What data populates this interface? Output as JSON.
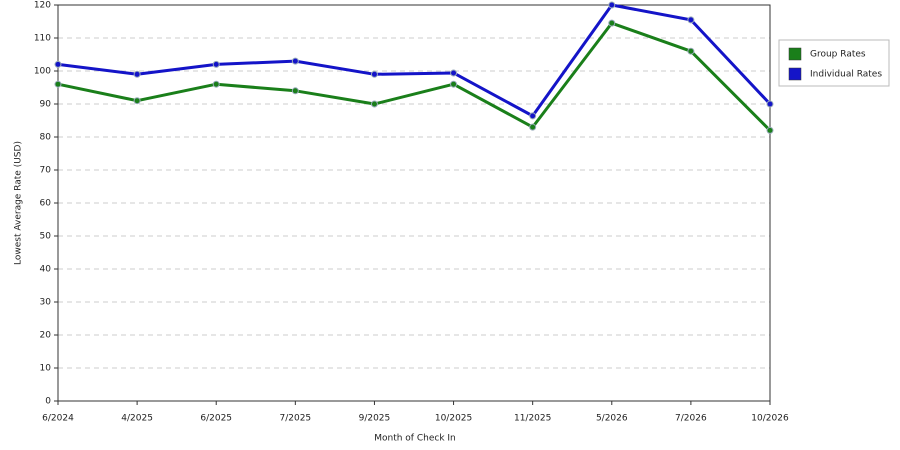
{
  "chart_data": {
    "type": "line",
    "x_label": "Month of Check In",
    "y_label": "Lowest Average Rate (USD)",
    "categories": [
      "6/2024",
      "4/2025",
      "6/2025",
      "7/2025",
      "9/2025",
      "10/2025",
      "11/2025",
      "5/2026",
      "7/2026",
      "10/2026"
    ],
    "series": [
      {
        "name": "Group Rates",
        "color": "#1a7f1a",
        "values": [
          96,
          91,
          96,
          94,
          90,
          96,
          83,
          114.5,
          106,
          82
        ]
      },
      {
        "name": "Individual Rates",
        "color": "#1414c8",
        "values": [
          102,
          99,
          102,
          103,
          99,
          99.4,
          86.4,
          120,
          115.5,
          90
        ]
      }
    ],
    "ylim": [
      0,
      120
    ],
    "yticks": [
      0,
      10,
      20,
      30,
      40,
      50,
      60,
      70,
      80,
      90,
      100,
      110,
      120
    ],
    "grid": true,
    "legend": "right"
  }
}
